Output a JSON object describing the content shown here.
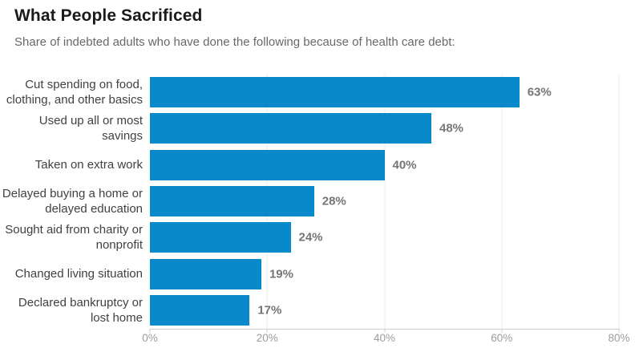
{
  "header": {
    "title": "What People Sacrificed",
    "subtitle": "Share of indebted adults who have done the following because of health care debt:"
  },
  "chart_data": {
    "type": "bar",
    "orientation": "horizontal",
    "title": "What People Sacrificed",
    "subtitle": "Share of indebted adults who have done the following because of health care debt:",
    "categories": [
      "Cut spending on food, clothing, and other basics",
      "Used up all or most savings",
      "Taken on extra work",
      "Delayed buying a home or delayed education",
      "Sought aid from charity or nonprofit",
      "Changed living situation",
      "Declared bankruptcy or lost home"
    ],
    "categories_display": [
      "Cut spending on food,\nclothing, and other basics",
      "Used up all or most savings",
      "Taken on extra work",
      "Delayed buying a home or\ndelayed education",
      "Sought aid from charity or\nnonprofit",
      "Changed living situation",
      "Declared bankruptcy or\nlost home"
    ],
    "values": [
      63,
      48,
      40,
      28,
      24,
      19,
      17
    ],
    "value_labels": [
      "63%",
      "48%",
      "40%",
      "28%",
      "24%",
      "19%",
      "17%"
    ],
    "xlabel": "",
    "ylabel": "",
    "xlim": [
      0,
      80
    ],
    "x_tick_values": [
      0,
      20,
      40,
      60,
      80
    ],
    "x_tick_labels": [
      "0%",
      "20%",
      "40%",
      "60%",
      "80%"
    ],
    "grid": "vertical gridlines at ticks (except 0)",
    "legend": "none",
    "bar_color": "#0889cc"
  },
  "colors": {
    "bar": "#0889cc",
    "title": "#1a1a1a",
    "subtitle": "#686868",
    "category_label": "#414141",
    "value_label": "#757575",
    "tick_label": "#9c9c9c",
    "gridline": "#ebebeb",
    "axis_line": "#cccccc",
    "background": "#ffffff"
  }
}
